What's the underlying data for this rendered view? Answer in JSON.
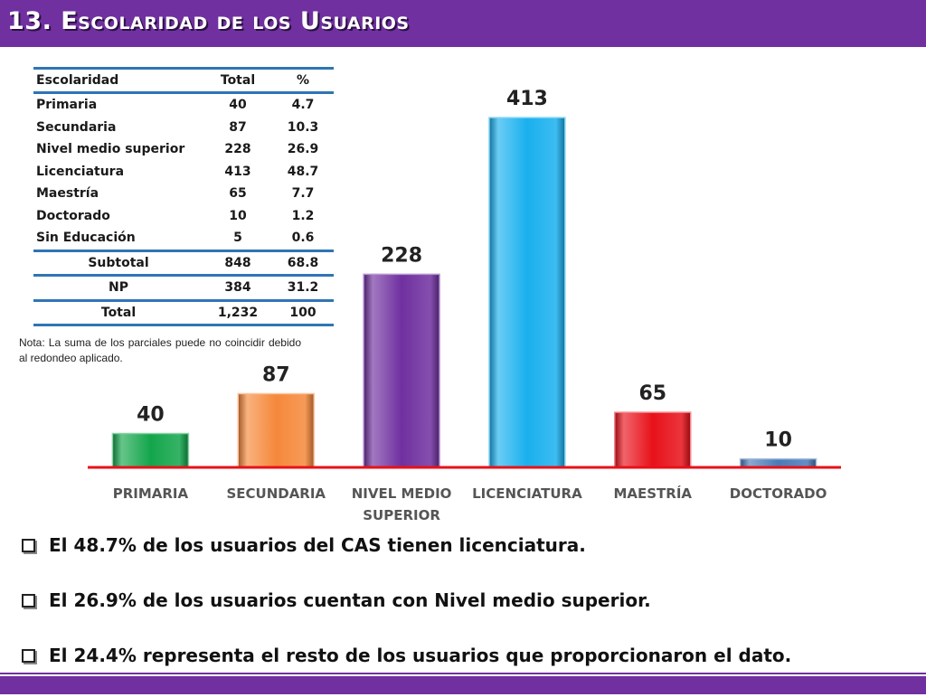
{
  "header": {
    "title": "13. Escolaridad de los Usuarios"
  },
  "table": {
    "headers": [
      "Escolaridad",
      "Total",
      "%"
    ],
    "rows": [
      [
        "Primaria",
        "40",
        "4.7"
      ],
      [
        "Secundaria",
        "87",
        "10.3"
      ],
      [
        "Nivel medio superior",
        "228",
        "26.9"
      ],
      [
        "Licenciatura",
        "413",
        "48.7"
      ],
      [
        "Maestría",
        "65",
        "7.7"
      ],
      [
        "Doctorado",
        "10",
        "1.2"
      ],
      [
        "Sin Educación",
        "5",
        "0.6"
      ]
    ],
    "subtotal": [
      "Subtotal",
      "848",
      "68.8"
    ],
    "np": [
      "NP",
      "384",
      "31.2"
    ],
    "total": [
      "Total",
      "1,232",
      "100"
    ]
  },
  "note": "Nota: La suma de los parciales puede no coincidir debido al redondeo aplicado.",
  "chart_data": {
    "type": "bar",
    "categories": [
      "PRIMARIA",
      "SECUNDARIA",
      "NIVEL MEDIO SUPERIOR",
      "LICENCIATURA",
      "MAESTRÍA",
      "DOCTORADO"
    ],
    "category_lines": [
      [
        "PRIMARIA"
      ],
      [
        "SECUNDARIA"
      ],
      [
        "NIVEL MEDIO",
        "SUPERIOR"
      ],
      [
        "LICENCIATURA"
      ],
      [
        "MAESTRÍA"
      ],
      [
        "DOCTORADO"
      ]
    ],
    "values": [
      40,
      87,
      228,
      413,
      65,
      10
    ],
    "colors": [
      "#13a54b",
      "#f5883a",
      "#7030a0",
      "#1ab0ee",
      "#e8111a",
      "#4a7ab8"
    ],
    "axis_color": "#e8111a",
    "title": "",
    "xlabel": "",
    "ylabel": "",
    "ylim": [
      0,
      413
    ]
  },
  "bullets": [
    "El 48.7% de los usuarios del CAS tienen licenciatura.",
    "El 26.9% de los usuarios cuentan con Nivel medio superior.",
    "El  24.4% representa el resto de los usuarios que proporcionaron el dato."
  ]
}
